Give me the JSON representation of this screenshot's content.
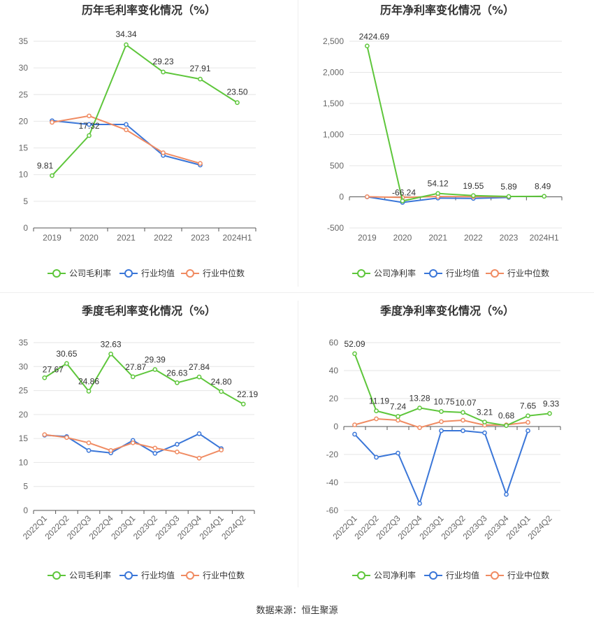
{
  "source_label": "数据来源：恒生聚源",
  "colors": {
    "company": "#5ec63b",
    "avg": "#3a76d8",
    "median": "#f08b62",
    "axis": "#999999",
    "grid": "#e6e6e6",
    "text": "#333333"
  },
  "chart_data": [
    {
      "type": "line",
      "title": "历年毛利率变化情况（%）",
      "categories": [
        "2019",
        "2020",
        "2021",
        "2022",
        "2023",
        "2024H1"
      ],
      "ylim": [
        0,
        35
      ],
      "yticks": [
        "0",
        "5",
        "10",
        "15",
        "20",
        "25",
        "30",
        "35"
      ],
      "grid": true,
      "legend_position": "bottom",
      "series": [
        {
          "name": "公司毛利率",
          "values": [
            9.81,
            17.32,
            34.34,
            29.23,
            27.91,
            23.5
          ],
          "labels": [
            "9.81",
            "17.32",
            "34.34",
            "29.23",
            "27.91",
            "23.50"
          ]
        },
        {
          "name": "行业均值",
          "values": [
            20.1,
            19.4,
            19.4,
            13.6,
            11.8,
            null
          ]
        },
        {
          "name": "行业中位数",
          "values": [
            19.8,
            21.0,
            18.4,
            14.1,
            12.1,
            null
          ]
        }
      ]
    },
    {
      "type": "line",
      "title": "历年净利率变化情况（%）",
      "categories": [
        "2019",
        "2020",
        "2021",
        "2022",
        "2023",
        "2024H1"
      ],
      "ylim": [
        -500,
        2500
      ],
      "yticks": [
        "-500",
        "0",
        "500",
        "1,000",
        "1,500",
        "2,000",
        "2,500"
      ],
      "grid": true,
      "legend_position": "bottom",
      "series": [
        {
          "name": "公司净利率",
          "values": [
            2424.69,
            -66.24,
            54.12,
            19.55,
            5.89,
            8.49
          ],
          "labels": [
            "2424.69",
            "-66.24",
            "54.12",
            "19.55",
            "5.89",
            "8.49"
          ]
        },
        {
          "name": "行业均值",
          "values": [
            0,
            -90,
            -20,
            -25,
            -10,
            null
          ]
        },
        {
          "name": "行业中位数",
          "values": [
            2,
            -10,
            5,
            3,
            1,
            null
          ]
        }
      ]
    },
    {
      "type": "line",
      "title": "季度毛利率变化情况（%）",
      "categories": [
        "2022Q1",
        "2022Q2",
        "2022Q3",
        "2022Q4",
        "2023Q1",
        "2023Q2",
        "2023Q3",
        "2023Q4",
        "2024Q1",
        "2024Q2"
      ],
      "ylim": [
        0,
        35
      ],
      "yticks": [
        "0",
        "5",
        "10",
        "15",
        "20",
        "25",
        "30",
        "35"
      ],
      "grid": true,
      "legend_position": "bottom",
      "series": [
        {
          "name": "公司毛利率",
          "values": [
            27.67,
            30.65,
            24.86,
            32.63,
            27.87,
            29.39,
            26.63,
            27.84,
            24.8,
            22.19
          ],
          "labels": [
            "27.67",
            "30.65",
            "24.86",
            "32.63",
            "27.87",
            "29.39",
            "26.63",
            "27.84",
            "24.80",
            "22.19"
          ]
        },
        {
          "name": "行业均值",
          "values": [
            15.7,
            15.4,
            12.5,
            12.0,
            14.6,
            11.9,
            13.8,
            16.0,
            12.9,
            null
          ]
        },
        {
          "name": "行业中位数",
          "values": [
            15.8,
            15.2,
            14.1,
            12.5,
            14.1,
            13.0,
            12.2,
            10.9,
            12.6,
            null
          ]
        }
      ]
    },
    {
      "type": "line",
      "title": "季度净利率变化情况（%）",
      "categories": [
        "2022Q1",
        "2022Q2",
        "2022Q3",
        "2022Q4",
        "2023Q1",
        "2023Q2",
        "2023Q3",
        "2023Q4",
        "2024Q1",
        "2024Q2"
      ],
      "ylim": [
        -60,
        60
      ],
      "yticks": [
        "-60",
        "-40",
        "-20",
        "0",
        "20",
        "40",
        "60"
      ],
      "grid": true,
      "legend_position": "bottom",
      "series": [
        {
          "name": "公司净利率",
          "values": [
            52.09,
            11.19,
            7.24,
            13.28,
            10.75,
            10.07,
            3.21,
            0.68,
            7.65,
            9.33
          ],
          "labels": [
            "52.09",
            "11.19",
            "7.24",
            "13.28",
            "10.75",
            "10.07",
            "3.21",
            "0.68",
            "7.65",
            "9.33"
          ]
        },
        {
          "name": "行业均值",
          "values": [
            -5.5,
            -22.0,
            -19.0,
            -55.0,
            -3.0,
            -3.0,
            -4.5,
            -48.5,
            -3.0,
            null
          ]
        },
        {
          "name": "行业中位数",
          "values": [
            1.2,
            5.5,
            4.5,
            -0.8,
            3.5,
            4.5,
            1.0,
            1.2,
            3.0,
            null
          ]
        }
      ]
    }
  ]
}
